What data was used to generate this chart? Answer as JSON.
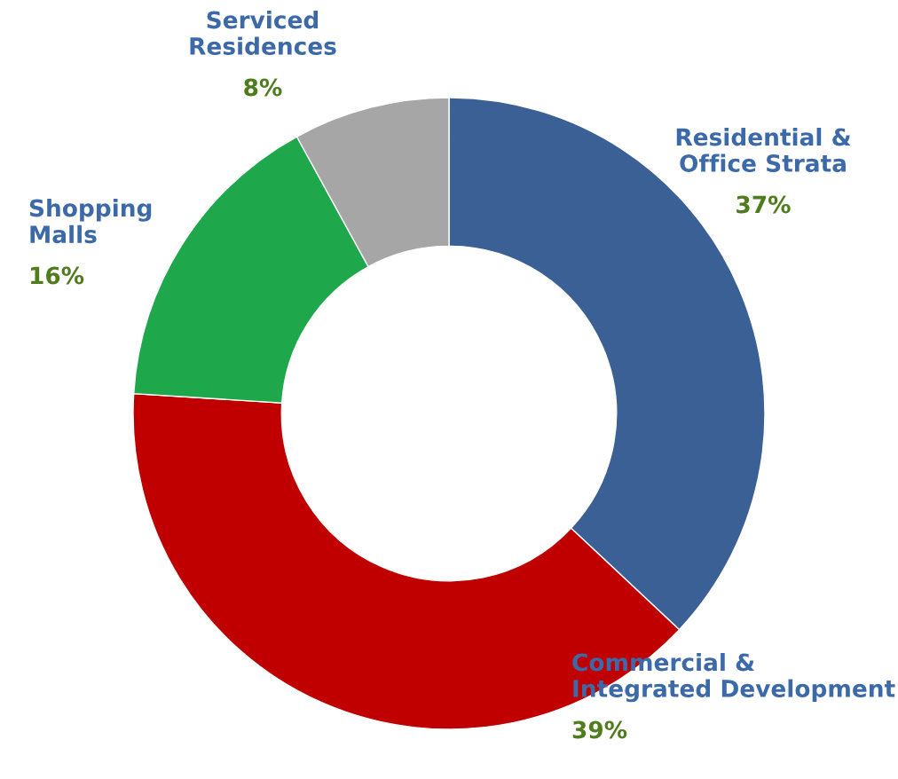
{
  "chart_data": {
    "type": "donut",
    "categories": [
      "Residential & Office Strata",
      "Commercial & Integrated Development",
      "Shopping Malls",
      "Serviced Residences"
    ],
    "values": [
      37,
      39,
      16,
      8
    ],
    "value_labels": [
      "37%",
      "39%",
      "16%",
      "8%"
    ],
    "colors": [
      "#3b6095",
      "#c00000",
      "#1ea84b",
      "#a6a6a6"
    ]
  }
}
